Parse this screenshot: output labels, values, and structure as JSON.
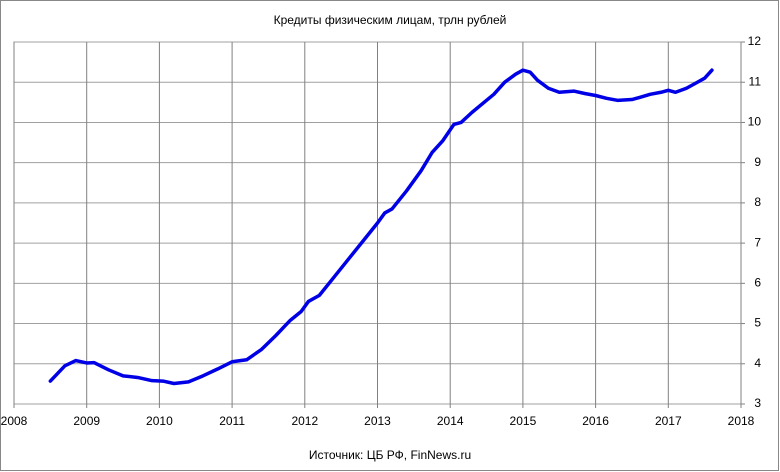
{
  "chart_data": {
    "type": "line",
    "title": "Кредиты физическим лицам, трлн рублей",
    "source": "Источник: ЦБ РФ, FinNews.ru",
    "x": [
      2008.5,
      2008.7,
      2008.85,
      2009.0,
      2009.1,
      2009.3,
      2009.5,
      2009.7,
      2009.9,
      2010.05,
      2010.2,
      2010.4,
      2010.6,
      2010.8,
      2011.0,
      2011.2,
      2011.4,
      2011.6,
      2011.8,
      2011.95,
      2012.05,
      2012.2,
      2012.4,
      2012.6,
      2012.8,
      2013.0,
      2013.1,
      2013.2,
      2013.4,
      2013.6,
      2013.75,
      2013.9,
      2014.05,
      2014.15,
      2014.3,
      2014.5,
      2014.6,
      2014.75,
      2014.9,
      2015.0,
      2015.1,
      2015.2,
      2015.35,
      2015.5,
      2015.7,
      2015.85,
      2016.0,
      2016.15,
      2016.3,
      2016.5,
      2016.6,
      2016.75,
      2016.9,
      2017.0,
      2017.1,
      2017.25,
      2017.4,
      2017.5,
      2017.6
    ],
    "series": [
      {
        "color": "#0000e6",
        "values": [
          3.57,
          3.95,
          4.08,
          4.02,
          4.03,
          3.85,
          3.7,
          3.66,
          3.58,
          3.57,
          3.51,
          3.55,
          3.7,
          3.87,
          4.05,
          4.1,
          4.35,
          4.7,
          5.08,
          5.3,
          5.55,
          5.7,
          6.15,
          6.6,
          7.05,
          7.5,
          7.75,
          7.85,
          8.3,
          8.8,
          9.25,
          9.55,
          9.95,
          10.0,
          10.25,
          10.55,
          10.7,
          11.0,
          11.2,
          11.3,
          11.25,
          11.05,
          10.85,
          10.75,
          10.78,
          10.72,
          10.67,
          10.6,
          10.55,
          10.57,
          10.62,
          10.7,
          10.75,
          10.8,
          10.75,
          10.85,
          11.0,
          11.1,
          11.3
        ]
      }
    ],
    "xlim": [
      2008,
      2018
    ],
    "xticks": [
      2008,
      2009,
      2010,
      2011,
      2012,
      2013,
      2014,
      2015,
      2016,
      2017,
      2018
    ],
    "ylim": [
      3,
      12
    ],
    "yticks": [
      3,
      4,
      5,
      6,
      7,
      8,
      9,
      10,
      11,
      12
    ],
    "grid": true
  }
}
